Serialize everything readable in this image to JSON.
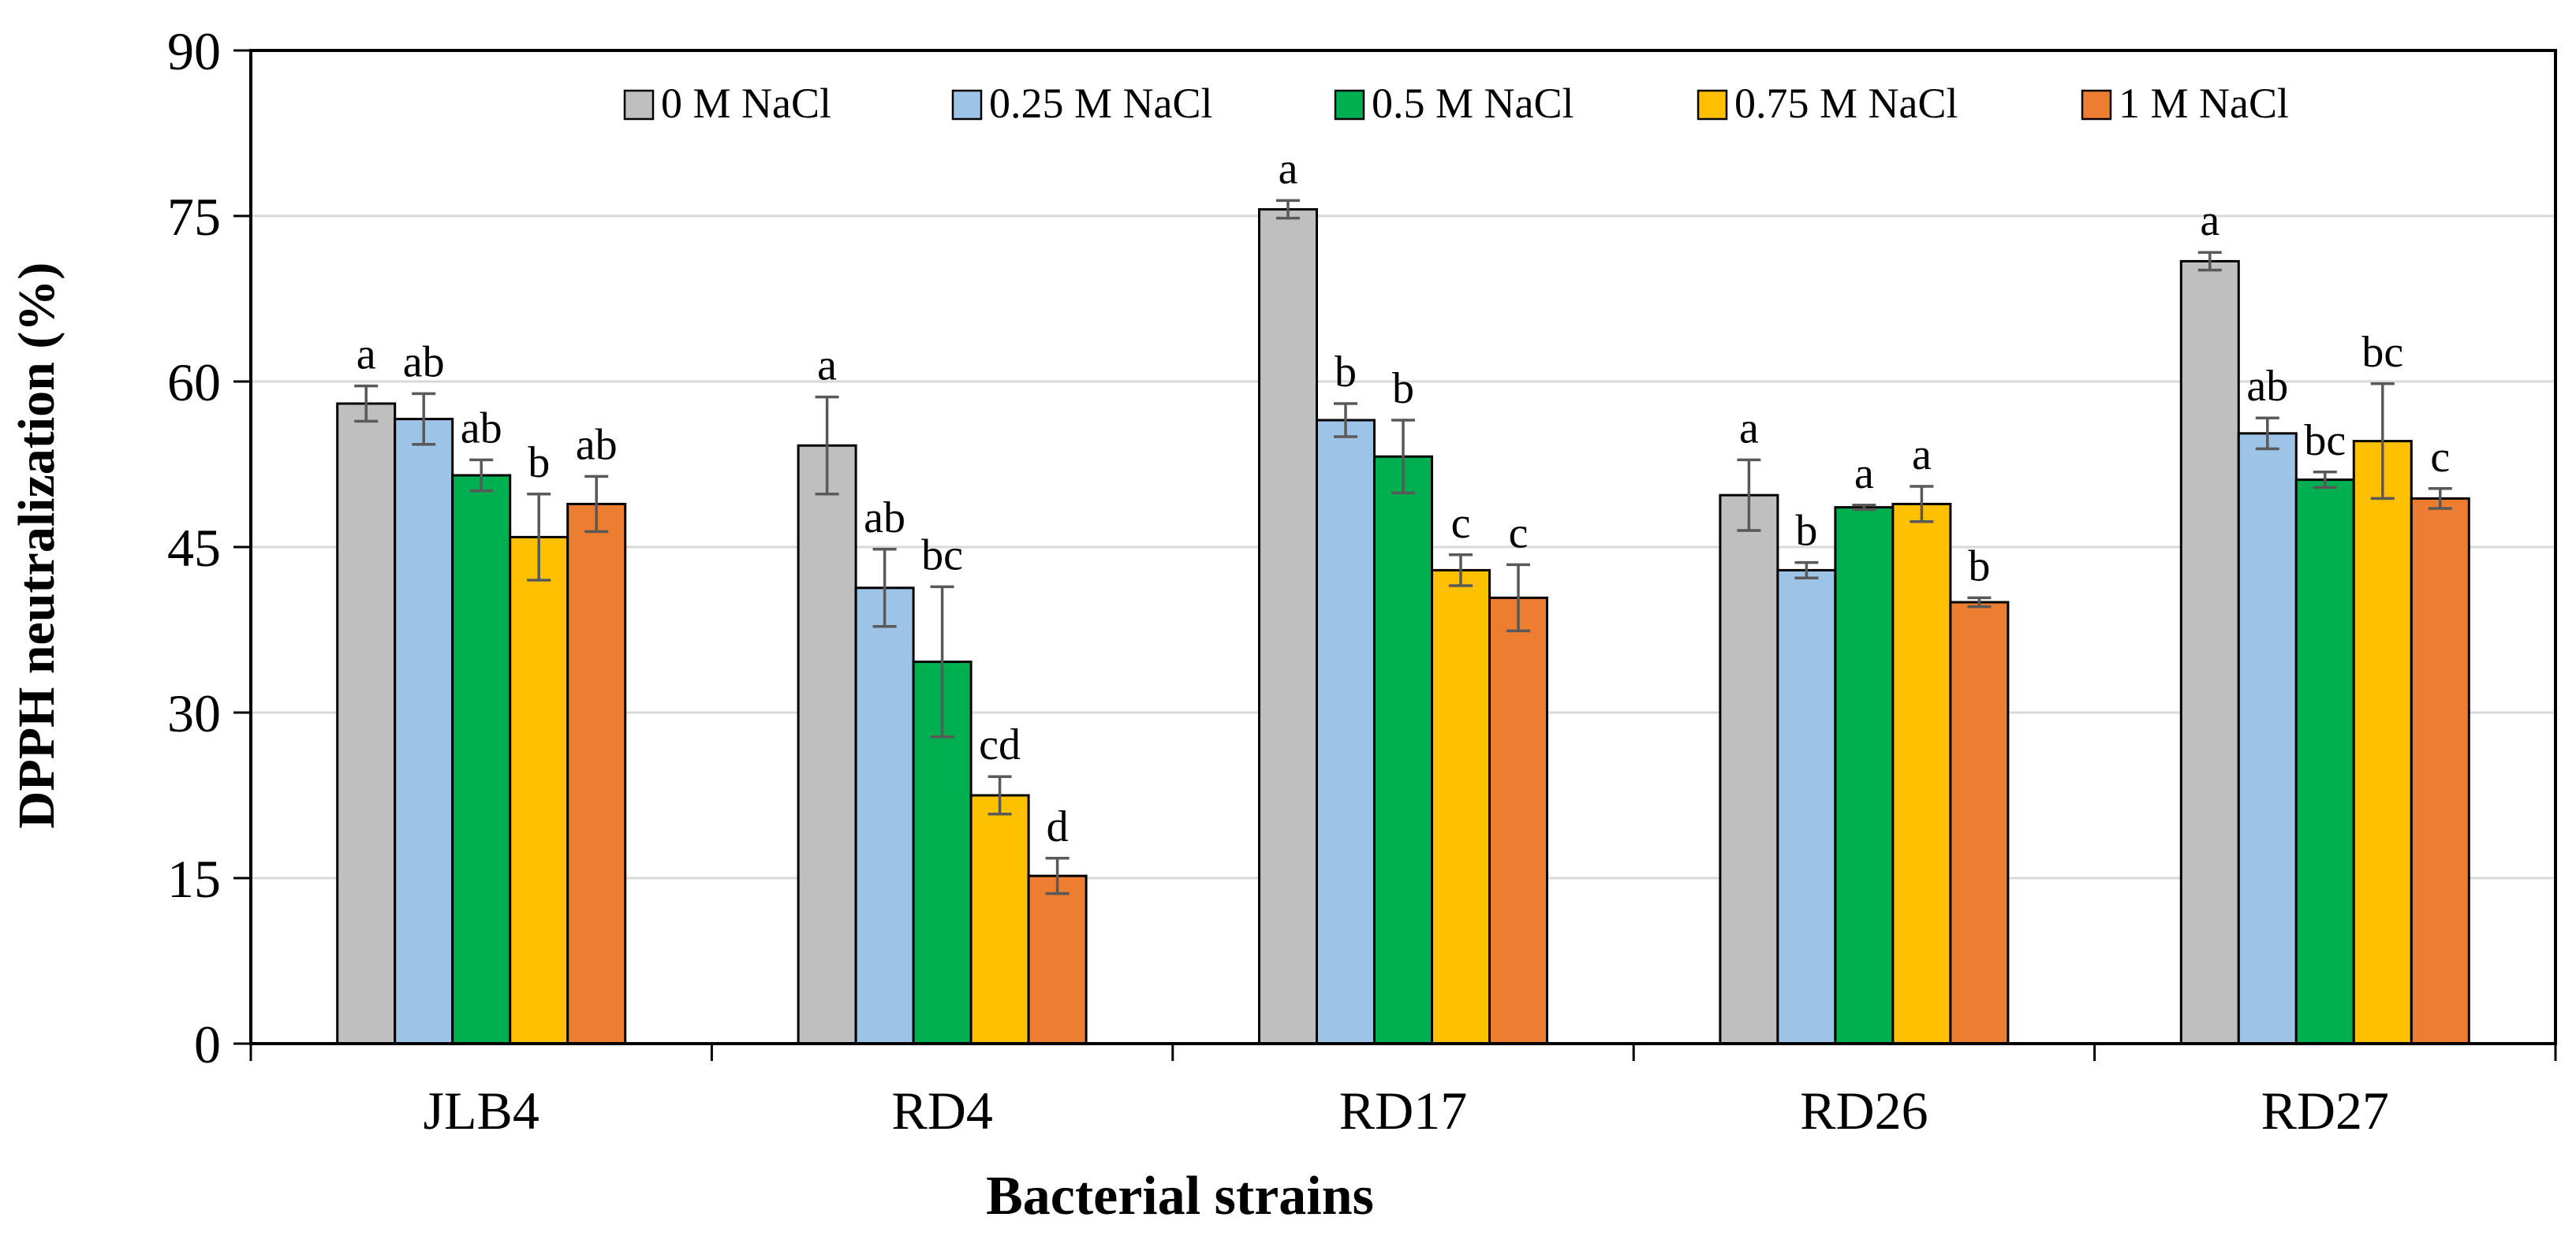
{
  "chart_data": {
    "type": "bar",
    "title": "",
    "xlabel": "Bacterial strains",
    "ylabel": "DPPH neutralization (%)",
    "ylim": [
      0,
      90
    ],
    "yticks": [
      "0",
      "15",
      "30",
      "45",
      "60",
      "75",
      "90"
    ],
    "ytick_values": [
      0,
      15,
      30,
      45,
      60,
      75,
      90
    ],
    "gridlines": true,
    "legend_position": "top",
    "categories": [
      "JLB4",
      "RD4",
      "RD17",
      "RD26",
      "RD27"
    ],
    "series": [
      {
        "name": "0 M NaCl",
        "color": "#BFBFBF",
        "values": [
          58.0,
          54.2,
          75.6,
          49.7,
          70.9
        ],
        "errors": [
          1.6,
          4.4,
          0.8,
          3.2,
          0.8
        ],
        "letters": [
          "a",
          "a",
          "a",
          "a",
          "a"
        ]
      },
      {
        "name": "0.25 M NaCl",
        "color": "#9DC3E6",
        "values": [
          56.6,
          41.3,
          56.5,
          42.9,
          55.3
        ],
        "errors": [
          2.3,
          3.5,
          1.5,
          0.7,
          1.4
        ],
        "letters": [
          "ab",
          "ab",
          "b",
          "b",
          "ab"
        ]
      },
      {
        "name": "0.5 M NaCl",
        "color": "#00B050",
        "values": [
          51.5,
          34.6,
          53.2,
          48.6,
          51.1
        ],
        "errors": [
          1.4,
          6.8,
          3.3,
          0.2,
          0.7
        ],
        "letters": [
          "ab",
          "bc",
          "b",
          "a",
          "bc"
        ]
      },
      {
        "name": "0.75 M NaCl",
        "color": "#FFC000",
        "values": [
          45.9,
          22.5,
          42.9,
          48.9,
          54.6
        ],
        "errors": [
          3.9,
          1.7,
          1.4,
          1.6,
          5.2
        ],
        "letters": [
          "b",
          "cd",
          "c",
          "a",
          "bc"
        ]
      },
      {
        "name": "1 M NaCl",
        "color": "#ED7D31",
        "values": [
          48.9,
          15.2,
          40.4,
          40.0,
          49.4
        ],
        "errors": [
          2.5,
          1.6,
          3.0,
          0.4,
          0.9
        ],
        "letters": [
          "ab",
          "d",
          "c",
          "b",
          "c"
        ]
      }
    ]
  }
}
